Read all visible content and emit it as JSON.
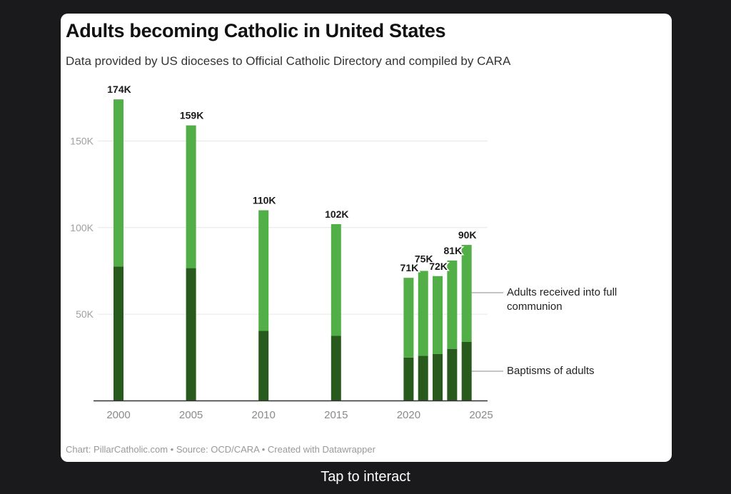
{
  "card": {
    "title": "Adults becoming Catholic in United States",
    "subtitle": "Data provided by US dioceses to Official Catholic Directory and compiled by CARA",
    "footer": "Chart: PillarCatholic.com • Source: OCD/CARA • Created with Datawrapper"
  },
  "overlay": {
    "tap_label": "Tap to interact"
  },
  "chart_data": {
    "type": "bar",
    "stacked": true,
    "title": "Adults becoming Catholic in United States",
    "subtitle": "Data provided by US dioceses to Official Catholic Directory and compiled by CARA",
    "xlabel": "",
    "ylabel": "",
    "x": [
      2000,
      2005,
      2010,
      2015,
      2020,
      2021,
      2022,
      2023,
      2024
    ],
    "xlim": [
      2000,
      2025
    ],
    "xticks": [
      "2000",
      "2005",
      "2010",
      "2015",
      "2020",
      "2025"
    ],
    "xtick_values": [
      2000,
      2005,
      2010,
      2015,
      2020,
      2025
    ],
    "ylim": [
      0,
      175000
    ],
    "yticks": [
      "50K",
      "100K",
      "150K"
    ],
    "ytick_values": [
      50000,
      100000,
      150000
    ],
    "grid": true,
    "series": [
      {
        "name": "Baptisms of adults",
        "color": "#275a1c",
        "values": [
          77500,
          76600,
          40400,
          37500,
          25000,
          26000,
          27000,
          30000,
          34000
        ]
      },
      {
        "name": "Adults received into full communion",
        "color": "#52ae47",
        "values": [
          96500,
          82400,
          69600,
          64500,
          46000,
          49000,
          45000,
          51000,
          56000
        ]
      }
    ],
    "totals": [
      174000,
      159000,
      110000,
      102000,
      71000,
      75000,
      72000,
      81000,
      90000
    ],
    "total_labels": [
      "174K",
      "159K",
      "110K",
      "102K",
      "71K",
      "75K",
      "72K",
      "81K",
      "90K"
    ],
    "legend": {
      "placement": "right",
      "entries": [
        "Adults received into full communion",
        "Baptisms of adults"
      ],
      "lines": [
        [
          "Adults received into full",
          "communion"
        ],
        [
          "Baptisms of adults"
        ]
      ]
    }
  }
}
